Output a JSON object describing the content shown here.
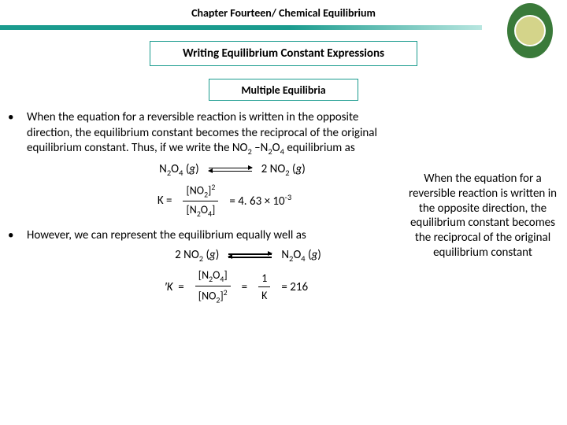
{
  "header": {
    "chapter_title": "Chapter Fourteen/ Chemical Equilibrium",
    "section_title": "Writing Equilibrium Constant Expressions",
    "subsection_title": "Multiple Equilibria"
  },
  "colors": {
    "accent": "#1a9b8e",
    "text": "#000000",
    "background": "#ffffff",
    "logo_outer": "#3a7a3a",
    "logo_inner": "#d4d48a"
  },
  "bullets": [
    {
      "text_html": "When the equation for a reversible reaction is written in the opposite direction, the equilibrium constant becomes the reciprocal of the original equilibrium constant. Thus, if we write the NO<sub>2</sub> –N<sub>2</sub>O<sub>4</sub> equilibrium as"
    },
    {
      "text_html": "However, we can represent the equilibrium equally well as"
    }
  ],
  "equations": {
    "forward": {
      "lhs": "N₂O₄ (g)",
      "rhs": "2 NO₂ (g)",
      "k_label": "K =",
      "frac_num": "[NO₂]²",
      "frac_den": "[N₂O₄]",
      "value": "= 4. 63 × 10⁻³"
    },
    "reverse": {
      "lhs": "2 NO₂ (g)",
      "rhs": "N₂O₄ (g)",
      "k_label": "′K  =",
      "frac1_num": "[N₂O₄]",
      "frac1_den": "[NO₂]²",
      "eq1": "=",
      "frac2_num": "1",
      "frac2_den": "K",
      "value": "= 216"
    }
  },
  "side_note": "When the equation for a reversible reaction is written in the opposite direction, the equilibrium constant becomes the reciprocal of the original equilibrium constant",
  "typography": {
    "title_fontsize": 14,
    "body_fontsize": 15,
    "font_family": "Calibri"
  }
}
